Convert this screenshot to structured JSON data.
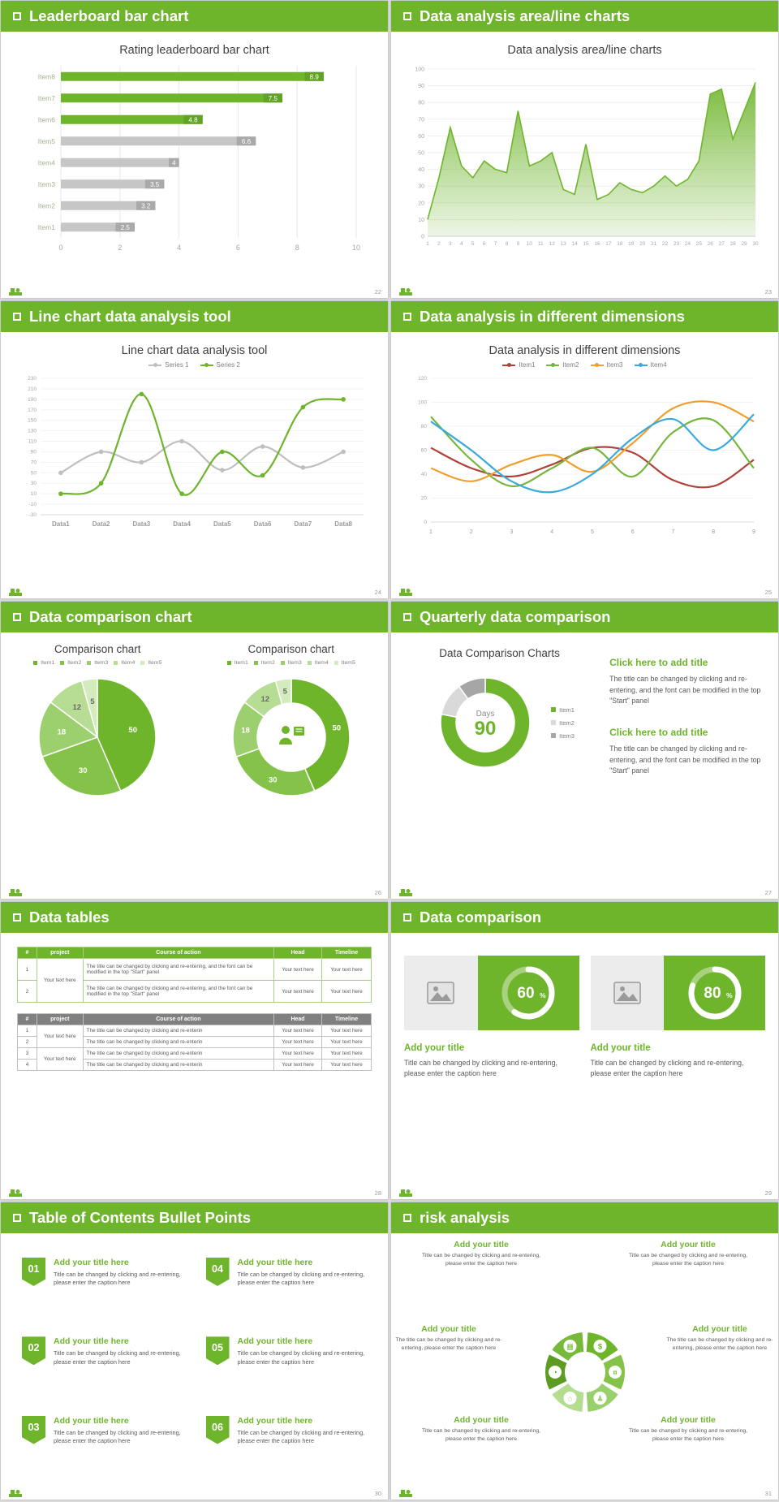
{
  "page": {
    "bg": "#dcdcdc",
    "accent": "#6fb52c"
  },
  "slides": [
    {
      "id": "leaderboard",
      "header": "Leaderboard bar chart",
      "page": "22"
    },
    {
      "id": "area",
      "header": "Data analysis area/line charts",
      "page": "23"
    },
    {
      "id": "linetool",
      "header": "Line chart data analysis tool",
      "page": "24"
    },
    {
      "id": "dimensions",
      "header": "Data analysis in different dimensions",
      "page": "25"
    },
    {
      "id": "comparison",
      "header": "Data comparison chart",
      "page": "26"
    },
    {
      "id": "quarterly",
      "header": "Quarterly data comparison",
      "page": "27",
      "title": "Data Comparison Charts",
      "blocks": [
        {
          "title": "Click here to add title",
          "body": "The title can be changed by clicking and re-entering, and the font can be modified in the top \"Start\" panel"
        },
        {
          "title": "Click here to add title",
          "body": "The title can be changed by clicking and re-entering, and the font can be modified in the top \"Start\" panel"
        }
      ]
    },
    {
      "id": "tables",
      "header": "Data tables",
      "page": "28"
    },
    {
      "id": "datacomp",
      "header": "Data comparison",
      "page": "29",
      "cards": [
        {
          "chart": "progress60",
          "title": "Add your title",
          "caption": "Title can be changed by clicking and re-entering, please enter the caption here"
        },
        {
          "chart": "progress80",
          "title": "Add your title",
          "caption": "Title can be changed by clicking and re-entering, please enter the caption here"
        }
      ]
    },
    {
      "id": "toc",
      "header": "Table of Contents Bullet Points",
      "page": "30",
      "items": [
        {
          "num": "01",
          "title": "Add your title here",
          "caption": "Title can be changed by clicking and re-entering, please enter the caption here"
        },
        {
          "num": "02",
          "title": "Add your title here",
          "caption": "Title can be changed by clicking and re-entering, please enter the caption here"
        },
        {
          "num": "03",
          "title": "Add your title here",
          "caption": "Title can be changed by clicking and re-entering, please enter the caption here"
        },
        {
          "num": "04",
          "title": "Add your title here",
          "caption": "Title can be changed by clicking and re-entering, please enter the caption here"
        },
        {
          "num": "05",
          "title": "Add your title here",
          "caption": "Title can be changed by clicking and re-entering, please enter the caption here"
        },
        {
          "num": "06",
          "title": "Add your title here",
          "caption": "Title can be changed by clicking and re-entering, please enter the caption here"
        }
      ]
    },
    {
      "id": "risk",
      "header": "risk analysis",
      "page": "31",
      "items": [
        {
          "pos": "tl",
          "title": "Add your title",
          "caption": "Title can be changed by clicking and re-entering, please enter the caption here"
        },
        {
          "pos": "tr",
          "title": "Add your title",
          "caption": "Title can be changed by clicking and re-entering, please enter the caption here"
        },
        {
          "pos": "ml",
          "title": "Add your title",
          "caption": "The title can be changed by clicking and re-entering, please enter the caption here"
        },
        {
          "pos": "mr",
          "title": "Add your title",
          "caption": "The title can be changed by clicking and re-entering, please enter the caption here"
        },
        {
          "pos": "bl",
          "title": "Add your title",
          "caption": "Title can be changed by clicking and re-entering, please enter the caption here"
        },
        {
          "pos": "br",
          "title": "Add your title",
          "caption": "Title can be changed by clicking and re-entering, please enter the caption here"
        }
      ],
      "wheel": {
        "segments": [
          {
            "color": "#6fb52c",
            "glyph": "$",
            "icon": "money-bag-icon"
          },
          {
            "color": "#84c24a",
            "glyph": "¤",
            "icon": "coins-icon"
          },
          {
            "color": "#9ad06c",
            "glyph": "♟",
            "icon": "person-icon"
          },
          {
            "color": "#b4dd90",
            "glyph": "⌂",
            "icon": "building-icon"
          },
          {
            "color": "#5c9c23",
            "glyph": "◔",
            "icon": "pie-chart-icon"
          },
          {
            "color": "#77b93a",
            "glyph": "▦",
            "icon": "grid-chart-icon"
          }
        ]
      }
    }
  ],
  "tables": {
    "green": {
      "headers": [
        "#",
        "project",
        "Course of action",
        "Head",
        "Timeline"
      ],
      "rows": [
        [
          "1",
          "Your text here",
          "The title can be changed by clicking and re-entering, and the font can be modified in the top \"Start\" panel",
          "Your text here",
          "Your text here"
        ],
        [
          "2",
          "",
          "The title can be changed by clicking and re-entering, and the font can be modified in the top \"Start\" panel",
          "Your text here",
          "Your text here"
        ]
      ]
    },
    "gray": {
      "headers": [
        "#",
        "project",
        "Course of action",
        "Head",
        "Timeline"
      ],
      "rows": [
        [
          "1",
          "Your text here",
          "The title can be changed by clicking and re-enterin",
          "Your text here",
          "Your text here"
        ],
        [
          "2",
          "",
          "The title can be changed by clicking and re-enterin",
          "Your text here",
          "Your text here"
        ],
        [
          "3",
          "Your text here",
          "The title can be changed by clicking and re-enterin",
          "Your text here",
          "Your text here"
        ],
        [
          "4",
          "",
          "The title can be changed by clicking and re-enterin",
          "Your text here",
          "Your text here"
        ]
      ]
    }
  },
  "chart_data": [
    {
      "id": "leaderboard",
      "type": "bar",
      "orientation": "horizontal",
      "title": "Rating leaderboard bar chart",
      "categories": [
        "Item1",
        "Item2",
        "Item3",
        "Item4",
        "Item5",
        "Item6",
        "Item7",
        "Item8"
      ],
      "values": [
        2.5,
        3.2,
        3.5,
        4,
        6.6,
        4.8,
        7.5,
        8.9
      ],
      "highlight": [
        false,
        false,
        false,
        false,
        false,
        true,
        true,
        true
      ],
      "xticks": [
        0,
        2,
        4,
        6,
        8,
        10
      ],
      "xlim": [
        0,
        10
      ],
      "bar_color": "#6fb52c",
      "muted_color": "#c6c6c6",
      "tag_color": "#61a325",
      "muted_tag": "#a9a9a9",
      "label_color": "#a4b291"
    },
    {
      "id": "area",
      "type": "area",
      "title": "Data analysis area/line charts",
      "x": [
        1,
        2,
        3,
        4,
        5,
        6,
        7,
        8,
        9,
        10,
        11,
        12,
        13,
        14,
        15,
        16,
        17,
        18,
        19,
        20,
        21,
        22,
        23,
        24,
        25,
        26,
        27,
        28,
        29,
        30
      ],
      "values": [
        10,
        35,
        65,
        42,
        35,
        45,
        40,
        38,
        75,
        42,
        45,
        50,
        28,
        25,
        55,
        22,
        25,
        32,
        28,
        26,
        30,
        36,
        30,
        34,
        45,
        85,
        88,
        58,
        75,
        92
      ],
      "ylim": [
        0,
        100
      ],
      "yticks": [
        0,
        10,
        20,
        30,
        40,
        50,
        60,
        70,
        80,
        90,
        100
      ],
      "color": "#6fb52c"
    },
    {
      "id": "linetool",
      "type": "line",
      "title": "Line chart data analysis tool",
      "categories": [
        "Data1",
        "Data2",
        "Data3",
        "Data4",
        "Data5",
        "Data6",
        "Data7",
        "Data8"
      ],
      "ylim": [
        -30,
        230
      ],
      "yticks": [
        -30,
        -10,
        10,
        30,
        50,
        70,
        90,
        110,
        130,
        150,
        170,
        190,
        210,
        230
      ],
      "markers": true,
      "series": [
        {
          "name": "Series 1",
          "color": "#bfbfbf",
          "values": [
            50,
            90,
            70,
            110,
            55,
            100,
            60,
            90
          ]
        },
        {
          "name": "Series 2",
          "color": "#6fb52c",
          "values": [
            10,
            30,
            200,
            10,
            90,
            45,
            175,
            190
          ]
        }
      ]
    },
    {
      "id": "dimensions",
      "type": "line",
      "title": "Data analysis in different dimensions",
      "x": [
        1,
        2,
        3,
        4,
        5,
        6,
        7,
        8,
        9
      ],
      "ylim": [
        0,
        120
      ],
      "yticks": [
        0,
        20,
        40,
        60,
        80,
        100,
        120
      ],
      "markers": false,
      "series": [
        {
          "name": "Item1",
          "color": "#b0413b",
          "values": [
            62,
            45,
            38,
            48,
            62,
            58,
            35,
            30,
            52
          ]
        },
        {
          "name": "Item2",
          "color": "#77b63c",
          "values": [
            88,
            52,
            30,
            45,
            62,
            38,
            75,
            85,
            45
          ]
        },
        {
          "name": "Item3",
          "color": "#f09e2e",
          "values": [
            45,
            34,
            48,
            56,
            42,
            66,
            95,
            100,
            84
          ]
        },
        {
          "name": "Item4",
          "color": "#3aa9dc",
          "values": [
            84,
            60,
            34,
            25,
            40,
            70,
            86,
            60,
            90
          ]
        }
      ]
    },
    {
      "id": "pie",
      "type": "pie",
      "title": "Comparison chart",
      "labels": [
        "Item1",
        "Item2",
        "Item3",
        "Item4",
        "Item5"
      ],
      "values": [
        50,
        30,
        18,
        12,
        5
      ],
      "colors": [
        "#6fb52c",
        "#84c24a",
        "#9ccf6d",
        "#b7dd95",
        "#d4ebbe"
      ],
      "r1": 72,
      "show_labels": true
    },
    {
      "id": "donut",
      "type": "donut",
      "title": "Comparison chart",
      "labels": [
        "Item1",
        "Item2",
        "Item3",
        "Item4",
        "Item5"
      ],
      "values": [
        50,
        30,
        18,
        12,
        5
      ],
      "colors": [
        "#6fb52c",
        "#84c24a",
        "#9ccf6d",
        "#b7dd95",
        "#d4ebbe"
      ],
      "r1": 72,
      "r0": 42,
      "show_labels": true,
      "center_icon": "presenter-icon"
    },
    {
      "id": "days",
      "type": "donut",
      "labels": [
        "Item1",
        "Item2",
        "Item3"
      ],
      "values": [
        78,
        12,
        10
      ],
      "colors": [
        "#6fb52c",
        "#d9d9d9",
        "#a6a6a6"
      ],
      "r1": 55,
      "r0": 36,
      "show_labels": false,
      "center_label": "Days",
      "center_value": "90"
    },
    {
      "id": "progress60",
      "type": "progress",
      "value": 60,
      "unit": "%"
    },
    {
      "id": "progress80",
      "type": "progress",
      "value": 80,
      "unit": "%"
    }
  ]
}
